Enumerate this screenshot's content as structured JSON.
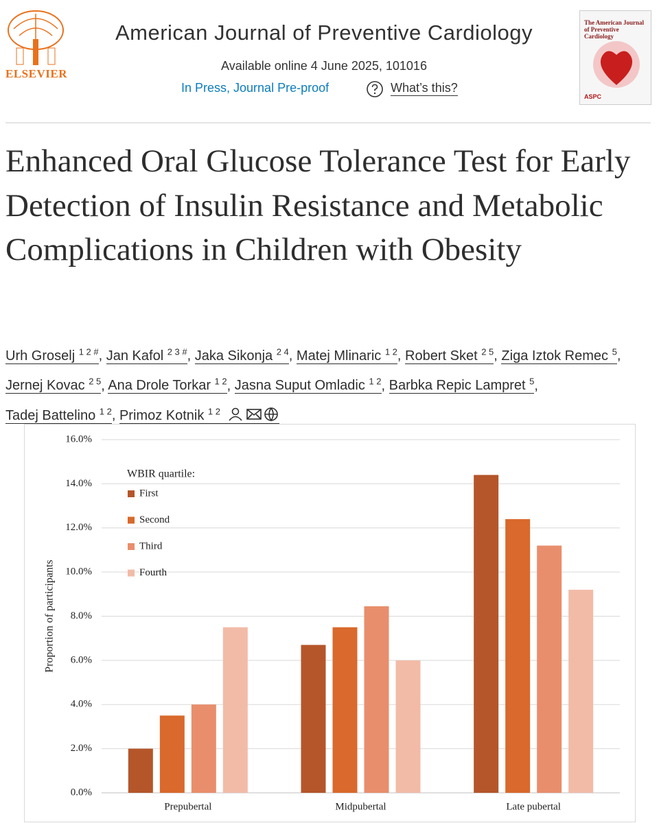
{
  "header": {
    "publisher": "ELSEVIER",
    "journal": "American Journal of Preventive Cardiology",
    "availability": "Available online 4 June 2025, 101016",
    "status": "In Press, Journal Pre-proof",
    "help": "What’s this?"
  },
  "cover": {
    "title": "The American Journal of Preventive Cardiology",
    "badge": "ASPC"
  },
  "article": {
    "title": "Enhanced Oral Glucose Tolerance Test for Early Detection of Insulin Resistance and Metabolic Complications in Children with Obesity"
  },
  "authors": {
    "separator": ",",
    "list": [
      {
        "name": "Urh Groselj",
        "sup": "1 2 #"
      },
      {
        "name": "Jan Kafol",
        "sup": "2 3 #"
      },
      {
        "name": "Jaka Sikonja",
        "sup": "2 4"
      },
      {
        "name": "Matej Mlinaric",
        "sup": "1 2"
      },
      {
        "name": "Robert Sket",
        "sup": "2 5"
      },
      {
        "name": "Ziga Iztok Remec",
        "sup": "5"
      },
      {
        "name": "Jernej Kovac",
        "sup": "2 5"
      },
      {
        "name": "Ana Drole Torkar",
        "sup": "1 2"
      },
      {
        "name": "Jasna Suput Omladic",
        "sup": "1 2"
      },
      {
        "name": "Barbka Repic Lampret",
        "sup": "5"
      },
      {
        "name": "Tadej Battelino",
        "sup": "1 2"
      },
      {
        "name": "Primoz Kotnik",
        "sup": "1 2"
      }
    ]
  },
  "chart_data": {
    "type": "bar",
    "ylabel": "Proportion of participants",
    "legend_title": "WBIR quartile:",
    "grid": true,
    "categories": [
      "Prepubertal",
      "Midpubertal",
      "Late pubertal"
    ],
    "series": [
      {
        "name": "First",
        "color": "#b5562a",
        "values": [
          2.0,
          6.7,
          14.4
        ]
      },
      {
        "name": "Second",
        "color": "#d9692c",
        "values": [
          3.5,
          7.5,
          12.4
        ]
      },
      {
        "name": "Third",
        "color": "#e98e6c",
        "values": [
          4.0,
          8.45,
          11.2
        ]
      },
      {
        "name": "Fourth",
        "color": "#f2bba8",
        "values": [
          7.5,
          6.0,
          9.2
        ]
      }
    ],
    "ylim": [
      0,
      16
    ],
    "yticks": [
      {
        "value": 0,
        "label": "0.0%"
      },
      {
        "value": 2,
        "label": "2.0%"
      },
      {
        "value": 4,
        "label": "4.0%"
      },
      {
        "value": 6,
        "label": "6.0%"
      },
      {
        "value": 8,
        "label": "8.0%"
      },
      {
        "value": 10,
        "label": "10.0%"
      },
      {
        "value": 12,
        "label": "12.0%"
      },
      {
        "value": 14,
        "label": "14.0%"
      },
      {
        "value": 16,
        "label": "16.0%"
      }
    ]
  }
}
